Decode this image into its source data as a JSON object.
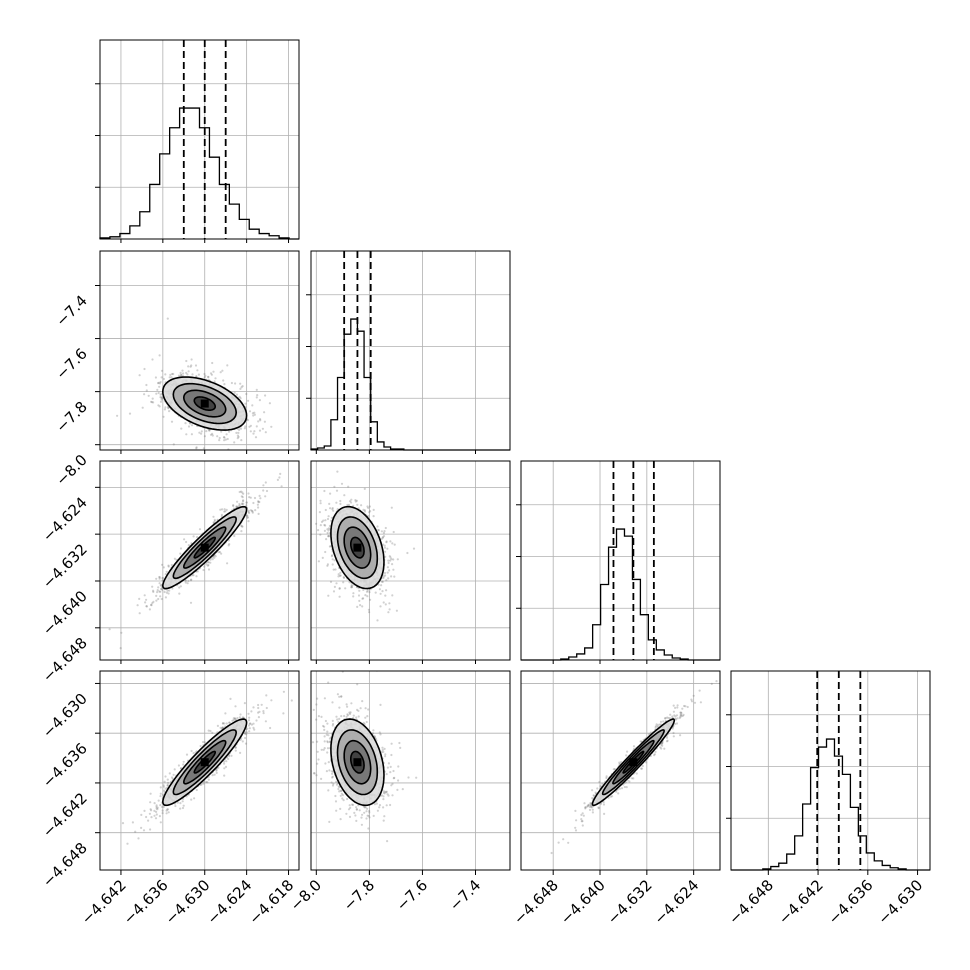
{
  "chart_data": {
    "type": "corner",
    "title": "",
    "grid": true,
    "parameters": [
      {
        "index": 0,
        "range": [
          -4.645,
          -4.6165
        ],
        "ticks": [
          -4.642,
          -4.636,
          -4.63,
          -4.624,
          -4.618
        ],
        "tick_labels": [
          "−4.642",
          "−4.636",
          "−4.630",
          "−4.624",
          "−4.618"
        ],
        "quantiles": [
          -4.633,
          -4.63,
          -4.627
        ],
        "median": -4.63,
        "sigma": 0.003
      },
      {
        "index": 1,
        "range": [
          -8.02,
          -7.27
        ],
        "ticks": [
          -8.0,
          -7.8,
          -7.6,
          -7.4
        ],
        "tick_labels": [
          "−8.0",
          "−7.8",
          "−7.6",
          "−7.4"
        ],
        "quantiles": [
          -7.895,
          -7.845,
          -7.795
        ],
        "median": -7.845,
        "sigma": 0.05
      },
      {
        "index": 2,
        "range": [
          -4.6535,
          -4.6195
        ],
        "ticks": [
          -4.648,
          -4.64,
          -4.632,
          -4.624
        ],
        "tick_labels": [
          "−4.648",
          "−4.640",
          "−4.632",
          "−4.624"
        ],
        "quantiles": [
          -4.6377,
          -4.6343,
          -4.6308
        ],
        "median": -4.6343,
        "sigma": 0.0035
      },
      {
        "index": 3,
        "range": [
          -4.6525,
          -4.6285
        ],
        "ticks": [
          -4.648,
          -4.642,
          -4.636,
          -4.63
        ],
        "tick_labels": [
          "−4.648",
          "−4.642",
          "−4.636",
          "−4.630"
        ],
        "quantiles": [
          -4.6421,
          -4.6395,
          -4.6369
        ],
        "median": -4.6395,
        "sigma": 0.0026
      }
    ],
    "histograms": [
      {
        "param": 0,
        "counts": [
          1,
          2,
          5,
          12,
          25,
          50,
          78,
          102,
          120,
          120,
          102,
          75,
          50,
          32,
          18,
          9,
          5,
          3,
          1,
          0
        ]
      },
      {
        "param": 1,
        "counts": [
          1,
          2,
          4,
          30,
          72,
          115,
          130,
          118,
          72,
          28,
          8,
          3,
          1,
          1,
          0,
          0,
          0,
          0,
          0,
          0,
          0,
          0,
          0,
          0,
          0,
          0,
          0,
          0,
          0,
          0
        ]
      },
      {
        "param": 2,
        "counts": [
          0,
          0,
          0,
          0,
          0,
          1,
          3,
          6,
          12,
          35,
          75,
          112,
          130,
          123,
          80,
          45,
          20,
          10,
          5,
          2,
          1,
          0,
          0,
          0,
          0
        ]
      },
      {
        "param": 3,
        "counts": [
          0,
          0,
          0,
          0,
          1,
          3,
          6,
          14,
          30,
          58,
          90,
          108,
          115,
          100,
          84,
          55,
          30,
          15,
          8,
          4,
          2,
          1,
          0,
          0,
          0
        ]
      }
    ],
    "correlations": {
      "1,0": -0.45,
      "2,0": 0.93,
      "2,1": -0.35,
      "3,0": 0.92,
      "3,1": -0.3,
      "3,2": 0.97
    },
    "contour_levels_sigma": [
      0.5,
      1.0,
      1.5,
      2.0
    ],
    "n_samples": 8000
  }
}
